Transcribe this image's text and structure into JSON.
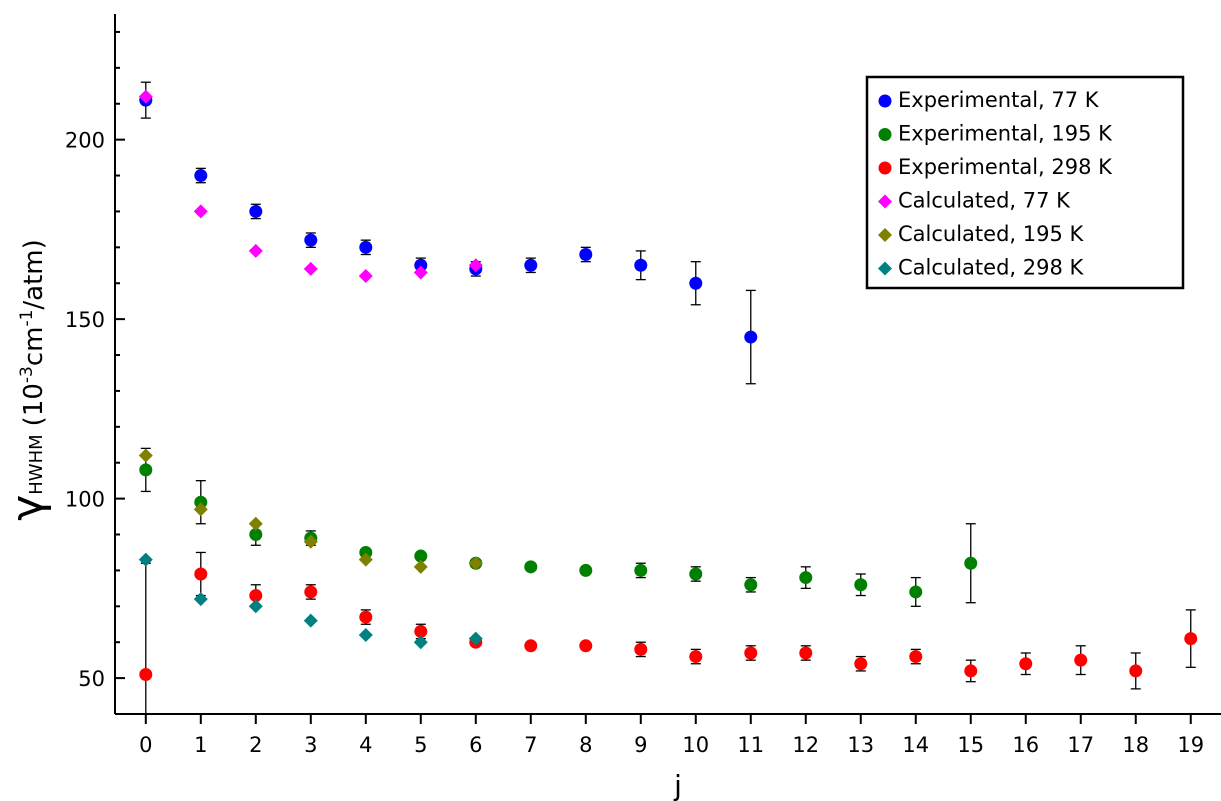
{
  "chart_data": {
    "type": "scatter",
    "xlabel": "j",
    "ylabel": {
      "symbol": "γ",
      "subscript": "HWHM",
      "parts": [
        "(10",
        "-3",
        "cm",
        "-1",
        "/atm)"
      ]
    },
    "xlim": [
      -0.56,
      19.55
    ],
    "xticks": [
      0,
      1,
      2,
      3,
      4,
      5,
      6,
      7,
      8,
      9,
      10,
      11,
      12,
      13,
      14,
      15,
      16,
      17,
      18,
      19
    ],
    "ylim": [
      40,
      235
    ],
    "yticks": [
      50,
      100,
      150,
      200
    ],
    "yminor_ticks": [
      60,
      70,
      80,
      90,
      110,
      120,
      130,
      140,
      160,
      170,
      180,
      190,
      210,
      220,
      230
    ],
    "legend": "upper right",
    "series": [
      {
        "name": "Experimental, 77 K",
        "color": "#0000ff",
        "marker": "circle",
        "x": [
          0,
          1,
          2,
          3,
          4,
          5,
          6,
          7,
          8,
          9,
          10,
          11
        ],
        "values": [
          211,
          190,
          180,
          172,
          170,
          165,
          164,
          165,
          168,
          165,
          160,
          145
        ],
        "errors": [
          5,
          2,
          2,
          2,
          2,
          2,
          2,
          2,
          2,
          4,
          6,
          13
        ]
      },
      {
        "name": "Experimental, 195 K",
        "color": "#008000",
        "marker": "circle",
        "x": [
          0,
          1,
          2,
          3,
          4,
          5,
          6,
          7,
          8,
          9,
          10,
          11,
          12,
          13,
          14,
          15
        ],
        "values": [
          108,
          99,
          90,
          89,
          85,
          84,
          82,
          81,
          80,
          80,
          79,
          76,
          78,
          76,
          74,
          82
        ],
        "errors": [
          6,
          6,
          3,
          2,
          null,
          null,
          null,
          null,
          null,
          2,
          2,
          2,
          3,
          3,
          4,
          11
        ]
      },
      {
        "name": "Experimental, 298 K",
        "color": "#ff0000",
        "marker": "circle",
        "x": [
          0,
          1,
          2,
          3,
          4,
          5,
          6,
          7,
          8,
          9,
          10,
          11,
          12,
          13,
          14,
          15,
          16,
          17,
          18,
          19
        ],
        "values": [
          51,
          79,
          73,
          74,
          67,
          63,
          60,
          59,
          59,
          58,
          56,
          57,
          57,
          54,
          56,
          52,
          54,
          55,
          52,
          61
        ],
        "errors": [
          31,
          6,
          3,
          2,
          2,
          2,
          null,
          null,
          null,
          2,
          2,
          2,
          2,
          2,
          2,
          3,
          3,
          4,
          5,
          8
        ]
      },
      {
        "name": "Calculated, 77 K",
        "color": "#ff00ff",
        "marker": "diamond",
        "x": [
          0,
          1,
          2,
          3,
          4,
          5,
          6
        ],
        "values": [
          212,
          180,
          169,
          164,
          162,
          163,
          165
        ]
      },
      {
        "name": "Calculated, 195 K",
        "color": "#808000",
        "marker": "diamond",
        "x": [
          0,
          1,
          2,
          3,
          4,
          5,
          6
        ],
        "values": [
          112,
          97,
          93,
          88,
          83,
          81,
          82
        ]
      },
      {
        "name": "Calculated, 298 K",
        "color": "#008080",
        "marker": "diamond",
        "x": [
          0,
          1,
          2,
          3,
          4,
          5,
          6
        ],
        "values": [
          83,
          72,
          70,
          66,
          62,
          60,
          61
        ]
      }
    ]
  }
}
